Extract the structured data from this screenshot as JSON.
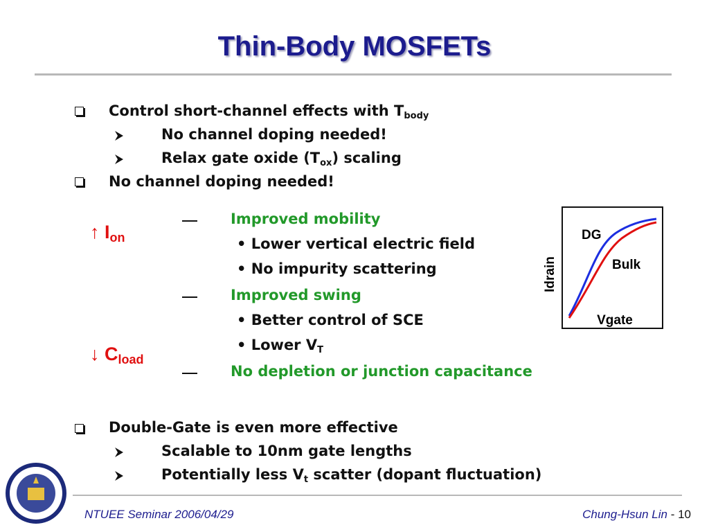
{
  "title": "Thin-Body MOSFETs",
  "points": [
    {
      "parts": [
        "Control short-channel effects with T",
        "body"
      ],
      "children": [
        {
          "parts": [
            "No channel doping needed!"
          ]
        },
        {
          "parts": [
            "Relax gate oxide (T",
            "ox",
            ") scaling"
          ]
        }
      ]
    },
    {
      "parts": [
        "No channel doping needed!"
      ]
    },
    {
      "parts": [
        "Double-Gate is even more effective"
      ],
      "children": [
        {
          "parts": [
            "Scalable to 10nm gate lengths"
          ]
        },
        {
          "parts": [
            "Potentially less V",
            "t",
            " scatter (dopant fluctuation)"
          ]
        }
      ]
    }
  ],
  "gains": [
    [
      "↑ I",
      "on"
    ],
    [
      "↓ C",
      "load"
    ]
  ],
  "effects": [
    {
      "heading": "Improved mobility",
      "details": [
        [
          "Lower vertical electric field"
        ],
        [
          "No impurity scattering"
        ]
      ]
    },
    {
      "heading": "Improved swing",
      "details": [
        [
          "Better control of SCE"
        ],
        [
          "Lower V",
          "T"
        ]
      ]
    },
    {
      "heading": "No depletion or junction capacitance"
    }
  ],
  "inset": {
    "curves": [
      "DG",
      "Bulk"
    ],
    "y_label": "Idrain",
    "x_label": "Vgate"
  },
  "footer": {
    "left": "NTUEE Seminar 2006/04/29",
    "right": [
      "Chung-Hsun Lin",
      " - 10"
    ]
  }
}
